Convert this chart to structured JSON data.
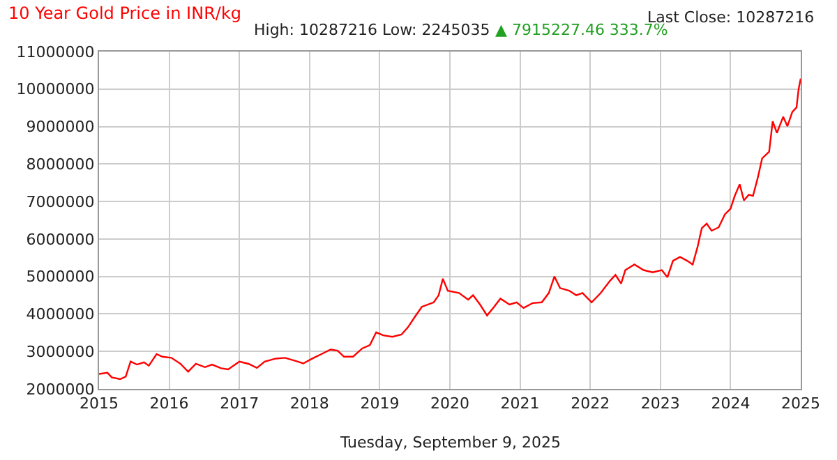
{
  "chart_data": {
    "type": "line",
    "title": "10 Year Gold Price in INR/kg",
    "annotations": [
      "Last Close: 10287216",
      "High: 10287216 Low: 2245035",
      "▲ 7915227.46 333.7%",
      "Tuesday, September 9, 2025"
    ],
    "series": [
      {
        "color": "#ff0000",
        "x": [
          2015.0,
          2015.12,
          2015.18,
          2015.3,
          2015.38,
          2015.45,
          2015.54,
          2015.64,
          2015.71,
          2015.82,
          2015.9,
          2016.03,
          2016.16,
          2016.27,
          2016.38,
          2016.51,
          2016.61,
          2016.74,
          2016.84,
          2017.0,
          2017.13,
          2017.25,
          2017.36,
          2017.52,
          2017.65,
          2017.81,
          2017.91,
          2018.04,
          2018.17,
          2018.3,
          2018.4,
          2018.49,
          2018.62,
          2018.75,
          2018.86,
          2018.95,
          2019.05,
          2019.18,
          2019.31,
          2019.4,
          2019.5,
          2019.6,
          2019.77,
          2019.84,
          2019.9,
          2019.97,
          2020.13,
          2020.26,
          2020.33,
          2020.43,
          2020.53,
          2020.63,
          2020.72,
          2020.85,
          2020.95,
          2021.05,
          2021.18,
          2021.31,
          2021.41,
          2021.49,
          2021.57,
          2021.7,
          2021.8,
          2021.89,
          2022.02,
          2022.15,
          2022.28,
          2022.36,
          2022.44,
          2022.5,
          2022.63,
          2022.76,
          2022.89,
          2023.02,
          2023.1,
          2023.18,
          2023.28,
          2023.38,
          2023.46,
          2023.53,
          2023.59,
          2023.66,
          2023.73,
          2023.83,
          2023.92,
          2024.0,
          2024.06,
          2024.13,
          2024.19,
          2024.26,
          2024.32,
          2024.39,
          2024.45,
          2024.55,
          2024.6,
          2024.66,
          2024.75,
          2024.81,
          2024.88,
          2024.94,
          2024.97,
          2025.0
        ],
        "values": [
          2400000,
          2430000,
          2310000,
          2260000,
          2330000,
          2730000,
          2650000,
          2710000,
          2620000,
          2930000,
          2860000,
          2830000,
          2670000,
          2460000,
          2670000,
          2580000,
          2650000,
          2550000,
          2520000,
          2730000,
          2670000,
          2560000,
          2730000,
          2810000,
          2830000,
          2740000,
          2680000,
          2810000,
          2930000,
          3050000,
          3020000,
          2860000,
          2860000,
          3080000,
          3170000,
          3510000,
          3430000,
          3390000,
          3450000,
          3640000,
          3920000,
          4190000,
          4310000,
          4500000,
          4940000,
          4620000,
          4560000,
          4380000,
          4500000,
          4250000,
          3960000,
          4190000,
          4410000,
          4250000,
          4310000,
          4160000,
          4290000,
          4310000,
          4560000,
          5000000,
          4690000,
          4620000,
          4500000,
          4560000,
          4310000,
          4560000,
          4880000,
          5040000,
          4810000,
          5170000,
          5320000,
          5170000,
          5110000,
          5170000,
          4980000,
          5420000,
          5520000,
          5420000,
          5320000,
          5790000,
          6290000,
          6410000,
          6220000,
          6310000,
          6660000,
          6810000,
          7150000,
          7460000,
          7030000,
          7180000,
          7150000,
          7650000,
          8150000,
          8330000,
          9140000,
          8830000,
          9260000,
          9010000,
          9390000,
          9510000,
          10000000,
          10280000
        ]
      }
    ],
    "xlim": [
      2015,
      2025
    ],
    "xticks": [
      2015,
      2016,
      2017,
      2018,
      2019,
      2020,
      2021,
      2022,
      2023,
      2024,
      2025
    ],
    "ylim": [
      2000000,
      11000000
    ],
    "yticks": [
      2000000,
      3000000,
      4000000,
      5000000,
      6000000,
      7000000,
      8000000,
      9000000,
      10000000,
      11000000
    ],
    "grid": true,
    "marker": "none",
    "line_style": "solid"
  }
}
